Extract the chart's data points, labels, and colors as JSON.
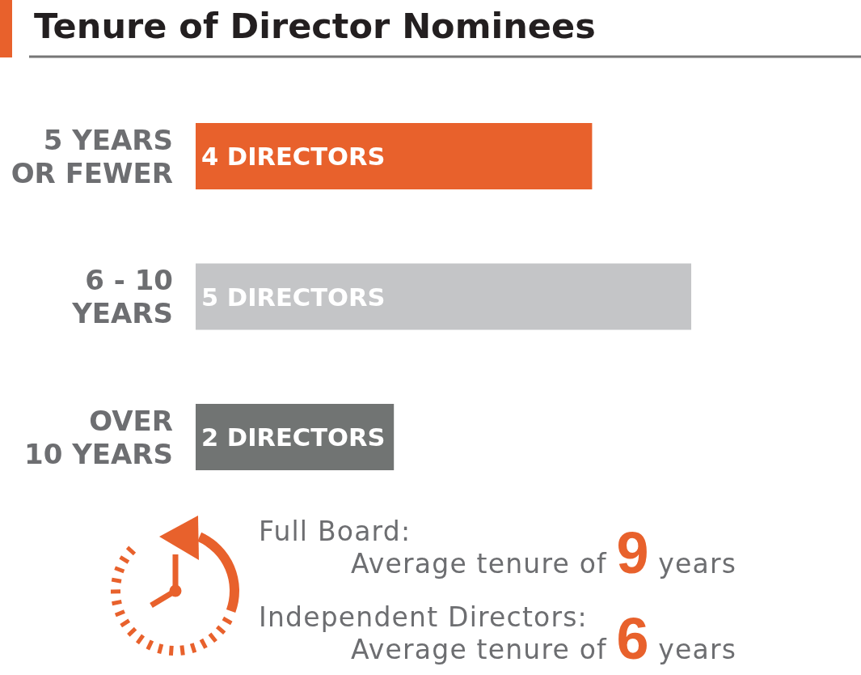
{
  "chart_data": {
    "type": "bar",
    "orientation": "horizontal",
    "title": "Tenure of Director Nominees",
    "categories": [
      "5 YEARS\nOR FEWER",
      "6 - 10\nYEARS",
      "OVER\n10 YEARS"
    ],
    "values": [
      4,
      5,
      2
    ],
    "colors": [
      "#e8612c",
      "#c4c5c7",
      "#717473"
    ],
    "value_labels": [
      "4 DIRECTORS",
      "5 DIRECTORS",
      "2 DIRECTORS"
    ],
    "annotations": [
      "Full Board:",
      "Average tenure of 9 years",
      "Independent Directors:",
      "Average tenure of 6 years"
    ]
  }
}
